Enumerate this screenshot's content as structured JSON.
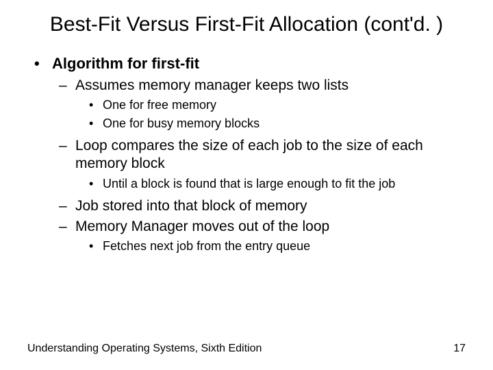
{
  "slide": {
    "title": "Best-Fit Versus First-Fit Allocation (cont'd. )",
    "l1_1": "Algorithm for first-fit",
    "l2_1": "Assumes memory manager keeps two lists",
    "l3_1": "One for free memory",
    "l3_2": "One for busy memory blocks",
    "l2_2": "Loop compares the size of each job to the size of each memory block",
    "l3_3": "Until a block is found that is large enough to fit the job",
    "l2_3": "Job stored into that block of memory",
    "l2_4": "Memory Manager moves out of the loop",
    "l3_4": "Fetches next job from the entry queue"
  },
  "footer": {
    "text": "Understanding Operating Systems, Sixth Edition",
    "page": "17"
  },
  "bullets": {
    "dot": "•",
    "dash": "–"
  }
}
